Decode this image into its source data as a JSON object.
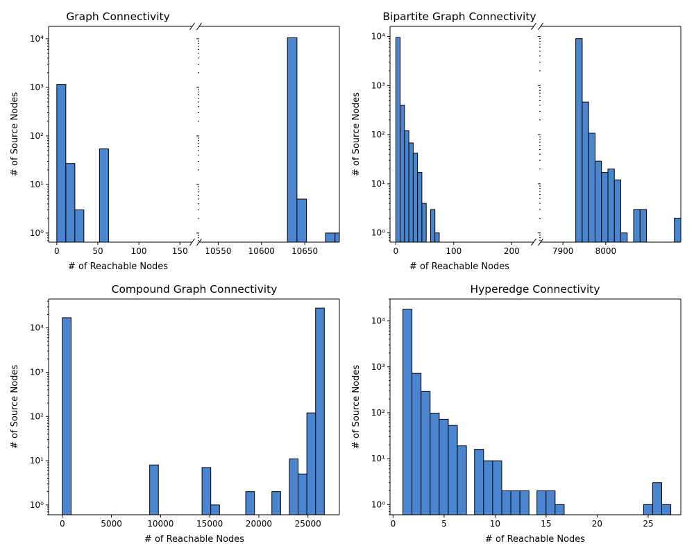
{
  "colors": {
    "bar": "#4a86cf",
    "edge": "#000000",
    "background": "#ffffff"
  },
  "chart_data": [
    {
      "id": "graph",
      "type": "bar",
      "title": "Graph Connectivity",
      "xlabel": "# of Reachable Nodes",
      "ylabel": "# of Source Nodes",
      "y_scale": "log",
      "ylim": [
        0.65,
        18000
      ],
      "yticks": [
        {
          "v": 1,
          "label": "10⁰"
        },
        {
          "v": 10,
          "label": "10¹"
        },
        {
          "v": 100,
          "label": "10²"
        },
        {
          "v": 1000,
          "label": "10³"
        },
        {
          "v": 10000,
          "label": "10⁴"
        }
      ],
      "broken_x_axis": true,
      "panels": [
        {
          "xlim": [
            -10,
            165
          ],
          "xticks": [
            {
              "v": 0,
              "label": "0"
            },
            {
              "v": 50,
              "label": "50"
            },
            {
              "v": 100,
              "label": "100"
            },
            {
              "v": 150,
              "label": "150"
            }
          ],
          "bars": [
            {
              "x0": 0,
              "x1": 11,
              "value": 1150
            },
            {
              "x0": 11,
              "x1": 22,
              "value": 27
            },
            {
              "x0": 22,
              "x1": 33,
              "value": 3
            },
            {
              "x0": 52,
              "x1": 63,
              "value": 54
            }
          ]
        },
        {
          "xlim": [
            10528,
            10690
          ],
          "xticks": [
            {
              "v": 10550,
              "label": "10550"
            },
            {
              "v": 10600,
              "label": "10600"
            },
            {
              "v": 10650,
              "label": "10650"
            }
          ],
          "bars": [
            {
              "x0": 10630,
              "x1": 10641,
              "value": 10500
            },
            {
              "x0": 10641,
              "x1": 10652,
              "value": 5
            },
            {
              "x0": 10674,
              "x1": 10685,
              "value": 1
            },
            {
              "x0": 10685,
              "x1": 10696,
              "value": 1
            }
          ]
        }
      ]
    },
    {
      "id": "bipartite",
      "type": "bar",
      "title": "Bipartite Graph Connectivity",
      "xlabel": "# of Reachable Nodes",
      "ylabel": "# of Source Nodes",
      "y_scale": "log",
      "ylim": [
        0.65,
        16000
      ],
      "yticks": [
        {
          "v": 1,
          "label": "10⁰"
        },
        {
          "v": 10,
          "label": "10¹"
        },
        {
          "v": 100,
          "label": "10²"
        },
        {
          "v": 1000,
          "label": "10³"
        },
        {
          "v": 10000,
          "label": "10⁴"
        }
      ],
      "broken_x_axis": true,
      "panels": [
        {
          "xlim": [
            -10,
            238
          ],
          "xticks": [
            {
              "v": 0,
              "label": "0"
            },
            {
              "v": 100,
              "label": "100"
            },
            {
              "v": 200,
              "label": "200"
            }
          ],
          "bars": [
            {
              "x0": 0,
              "x1": 7.5,
              "value": 9500
            },
            {
              "x0": 7.5,
              "x1": 15,
              "value": 400
            },
            {
              "x0": 15,
              "x1": 22.5,
              "value": 120
            },
            {
              "x0": 22.5,
              "x1": 30,
              "value": 68
            },
            {
              "x0": 30,
              "x1": 37.5,
              "value": 42
            },
            {
              "x0": 37.5,
              "x1": 45,
              "value": 17
            },
            {
              "x0": 45,
              "x1": 52.5,
              "value": 4
            },
            {
              "x0": 60,
              "x1": 67.5,
              "value": 3
            },
            {
              "x0": 67.5,
              "x1": 75,
              "value": 1
            }
          ]
        },
        {
          "xlim": [
            7848,
            8175
          ],
          "xticks": [
            {
              "v": 7900,
              "label": "7900"
            },
            {
              "v": 8000,
              "label": "8000"
            }
          ],
          "bars": [
            {
              "x0": 7930,
              "x1": 7945,
              "value": 9000
            },
            {
              "x0": 7945,
              "x1": 7960,
              "value": 460
            },
            {
              "x0": 7960,
              "x1": 7975,
              "value": 107
            },
            {
              "x0": 7975,
              "x1": 7990,
              "value": 29
            },
            {
              "x0": 7990,
              "x1": 8005,
              "value": 17
            },
            {
              "x0": 8005,
              "x1": 8020,
              "value": 20
            },
            {
              "x0": 8020,
              "x1": 8035,
              "value": 12
            },
            {
              "x0": 8035,
              "x1": 8050,
              "value": 1
            },
            {
              "x0": 8065,
              "x1": 8080,
              "value": 3
            },
            {
              "x0": 8080,
              "x1": 8095,
              "value": 3
            },
            {
              "x0": 8160,
              "x1": 8175,
              "value": 2
            }
          ]
        }
      ]
    },
    {
      "id": "compound",
      "type": "bar",
      "title": "Compound Graph Connectivity",
      "xlabel": "# of Reachable Nodes",
      "ylabel": "# of Source Nodes",
      "y_scale": "log",
      "ylim": [
        0.6,
        45000
      ],
      "yticks": [
        {
          "v": 1,
          "label": "10⁰"
        },
        {
          "v": 10,
          "label": "10¹"
        },
        {
          "v": 100,
          "label": "10²"
        },
        {
          "v": 1000,
          "label": "10³"
        },
        {
          "v": 10000,
          "label": "10⁴"
        }
      ],
      "broken_x_axis": false,
      "panels": [
        {
          "xlim": [
            -1400,
            28200
          ],
          "xticks": [
            {
              "v": 0,
              "label": "0"
            },
            {
              "v": 5000,
              "label": "5000"
            },
            {
              "v": 10000,
              "label": "10000"
            },
            {
              "v": 15000,
              "label": "15000"
            },
            {
              "v": 20000,
              "label": "20000"
            },
            {
              "v": 25000,
              "label": "25000"
            }
          ],
          "bars": [
            {
              "x0": 0,
              "x1": 890,
              "value": 17000
            },
            {
              "x0": 8890,
              "x1": 9780,
              "value": 8
            },
            {
              "x0": 14220,
              "x1": 15110,
              "value": 7
            },
            {
              "x0": 15110,
              "x1": 16000,
              "value": 1
            },
            {
              "x0": 18670,
              "x1": 19560,
              "value": 2
            },
            {
              "x0": 21330,
              "x1": 22220,
              "value": 2
            },
            {
              "x0": 23110,
              "x1": 24000,
              "value": 11
            },
            {
              "x0": 24000,
              "x1": 24890,
              "value": 5
            },
            {
              "x0": 24890,
              "x1": 25780,
              "value": 120
            },
            {
              "x0": 25780,
              "x1": 26670,
              "value": 28000
            }
          ]
        }
      ]
    },
    {
      "id": "hyperedge",
      "type": "bar",
      "title": "Hyperedge Connectivity",
      "xlabel": "# of Reachable Nodes",
      "ylabel": "# of Source Nodes",
      "y_scale": "log",
      "ylim": [
        0.6,
        30000
      ],
      "yticks": [
        {
          "v": 1,
          "label": "10⁰"
        },
        {
          "v": 10,
          "label": "10¹"
        },
        {
          "v": 100,
          "label": "10²"
        },
        {
          "v": 1000,
          "label": "10³"
        },
        {
          "v": 10000,
          "label": "10⁴"
        }
      ],
      "broken_x_axis": false,
      "panels": [
        {
          "xlim": [
            -0.3,
            28.2
          ],
          "xticks": [
            {
              "v": 0,
              "label": "0"
            },
            {
              "v": 5,
              "label": "5"
            },
            {
              "v": 10,
              "label": "10"
            },
            {
              "v": 15,
              "label": "15"
            },
            {
              "v": 20,
              "label": "20"
            },
            {
              "v": 25,
              "label": "25"
            }
          ],
          "bars": [
            {
              "x0": 0.96,
              "x1": 1.85,
              "value": 18000
            },
            {
              "x0": 1.85,
              "x1": 2.74,
              "value": 720
            },
            {
              "x0": 2.74,
              "x1": 3.63,
              "value": 290
            },
            {
              "x0": 3.63,
              "x1": 4.52,
              "value": 98
            },
            {
              "x0": 4.52,
              "x1": 5.41,
              "value": 72
            },
            {
              "x0": 5.41,
              "x1": 6.3,
              "value": 53
            },
            {
              "x0": 6.3,
              "x1": 7.19,
              "value": 19
            },
            {
              "x0": 7.98,
              "x1": 8.87,
              "value": 16
            },
            {
              "x0": 8.87,
              "x1": 9.76,
              "value": 9
            },
            {
              "x0": 9.76,
              "x1": 10.65,
              "value": 9
            },
            {
              "x0": 10.65,
              "x1": 11.54,
              "value": 2
            },
            {
              "x0": 11.54,
              "x1": 12.43,
              "value": 2
            },
            {
              "x0": 12.43,
              "x1": 13.32,
              "value": 2
            },
            {
              "x0": 14.1,
              "x1": 14.99,
              "value": 2
            },
            {
              "x0": 14.99,
              "x1": 15.88,
              "value": 2
            },
            {
              "x0": 15.88,
              "x1": 16.77,
              "value": 1
            },
            {
              "x0": 24.55,
              "x1": 25.44,
              "value": 1
            },
            {
              "x0": 25.44,
              "x1": 26.33,
              "value": 3
            },
            {
              "x0": 26.33,
              "x1": 27.22,
              "value": 1
            }
          ]
        }
      ]
    }
  ]
}
